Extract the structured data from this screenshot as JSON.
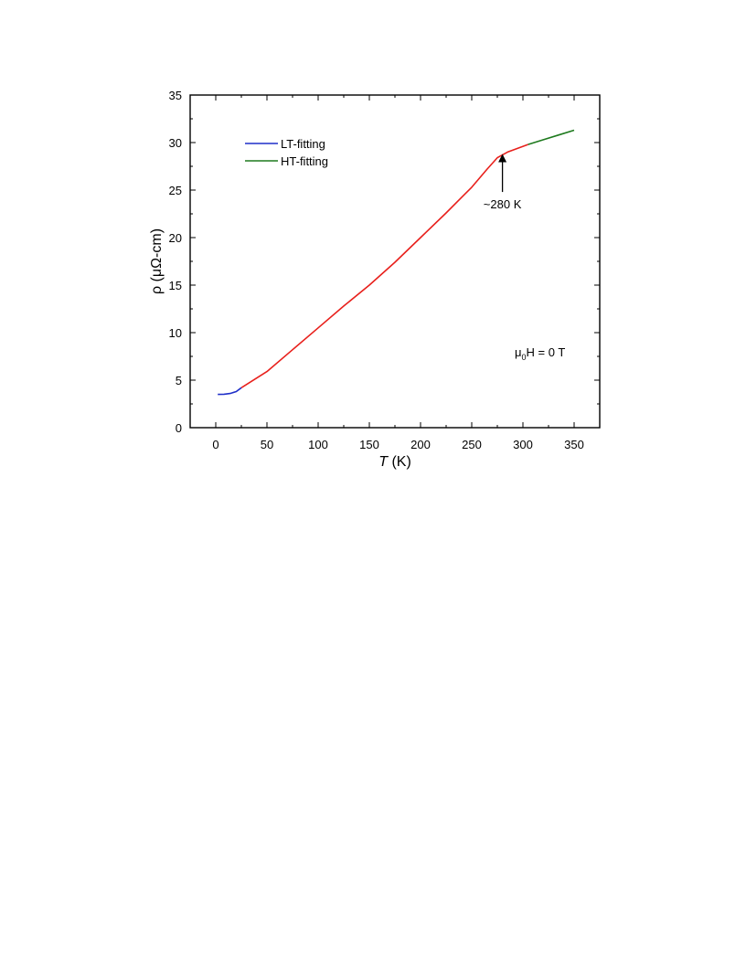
{
  "chart_data": {
    "type": "line",
    "xlabel_italic": "T",
    "xlabel_rest": " (K)",
    "ylabel": "ρ (μΩ-cm)",
    "xlim": [
      -25,
      375
    ],
    "ylim": [
      0,
      35
    ],
    "x_ticks": [
      0,
      50,
      100,
      150,
      200,
      250,
      300,
      350
    ],
    "y_ticks": [
      0,
      5,
      10,
      15,
      20,
      25,
      30,
      35
    ],
    "grid": false,
    "legend_position": "top-left",
    "series": [
      {
        "name": "",
        "color": "#e8201c",
        "points": [
          [
            25,
            4.2
          ],
          [
            50,
            5.9
          ],
          [
            75,
            8.2
          ],
          [
            100,
            10.5
          ],
          [
            125,
            12.8
          ],
          [
            150,
            15.0
          ],
          [
            175,
            17.4
          ],
          [
            200,
            20.0
          ],
          [
            225,
            22.6
          ],
          [
            250,
            25.3
          ],
          [
            265,
            27.2
          ],
          [
            275,
            28.4
          ],
          [
            285,
            29.0
          ],
          [
            305,
            29.8
          ]
        ]
      },
      {
        "name": "LT-fitting",
        "color": "#1f2fc8",
        "points": [
          [
            2,
            3.5
          ],
          [
            8,
            3.52
          ],
          [
            14,
            3.6
          ],
          [
            20,
            3.8
          ],
          [
            25,
            4.2
          ]
        ]
      },
      {
        "name": "HT-fitting",
        "color": "#1e7a1e",
        "points": [
          [
            305,
            29.8
          ],
          [
            320,
            30.3
          ],
          [
            335,
            30.8
          ],
          [
            350,
            31.3
          ]
        ]
      }
    ],
    "annotations": {
      "arrow_label": "~280 K",
      "arrow_x": 280,
      "arrow_y_from": 24.8,
      "arrow_y_to": 28.8,
      "field_mu": "μ",
      "field_sub": "0",
      "field_rest": "H = 0 T",
      "field_x": 292,
      "field_y": 8.0
    }
  }
}
